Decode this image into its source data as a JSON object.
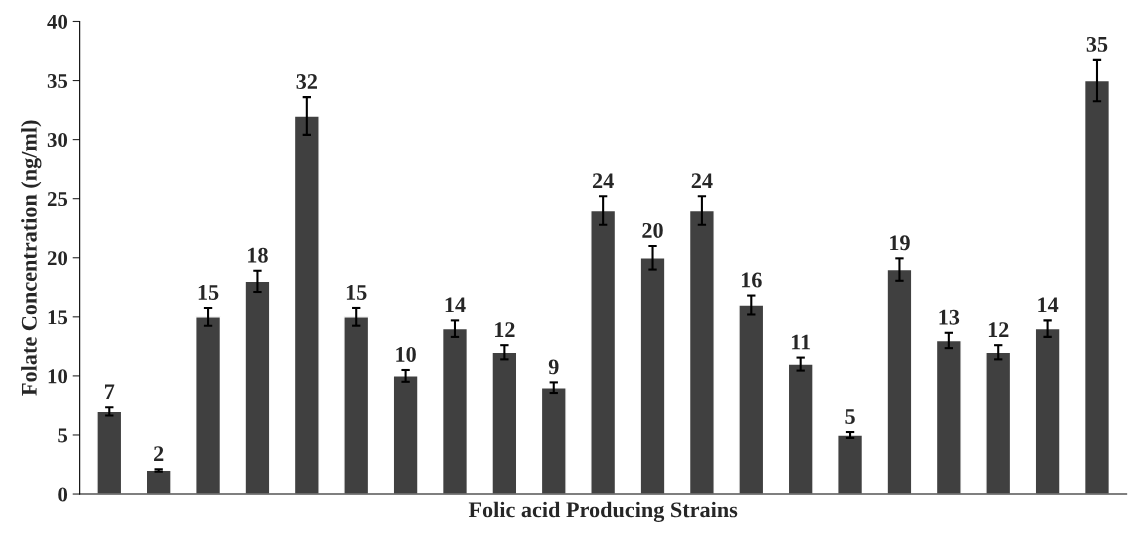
{
  "chart_data": {
    "type": "bar",
    "xlabel": "Folic acid Producing Strains",
    "ylabel": "Folate Concentration (ng/ml)",
    "categories": [
      null,
      null,
      null,
      null,
      null,
      null,
      null,
      null,
      null,
      null,
      null,
      null,
      null,
      null,
      null,
      null,
      null,
      null,
      null,
      null,
      null
    ],
    "values": [
      7,
      2,
      15,
      18,
      32,
      15,
      10,
      14,
      12,
      9,
      24,
      20,
      24,
      16,
      11,
      5,
      19,
      13,
      12,
      14,
      35
    ],
    "errors": [
      0.35,
      0.1,
      0.75,
      0.9,
      1.6,
      0.75,
      0.5,
      0.7,
      0.6,
      0.45,
      1.2,
      1.0,
      1.2,
      0.8,
      0.55,
      0.25,
      0.95,
      0.65,
      0.6,
      0.7,
      1.75
    ],
    "color": "#404040",
    "data_labels": true,
    "ylim": [
      0,
      40
    ],
    "yticks": [
      0,
      5,
      10,
      15,
      20,
      25,
      30,
      35,
      40
    ],
    "grid": false
  }
}
